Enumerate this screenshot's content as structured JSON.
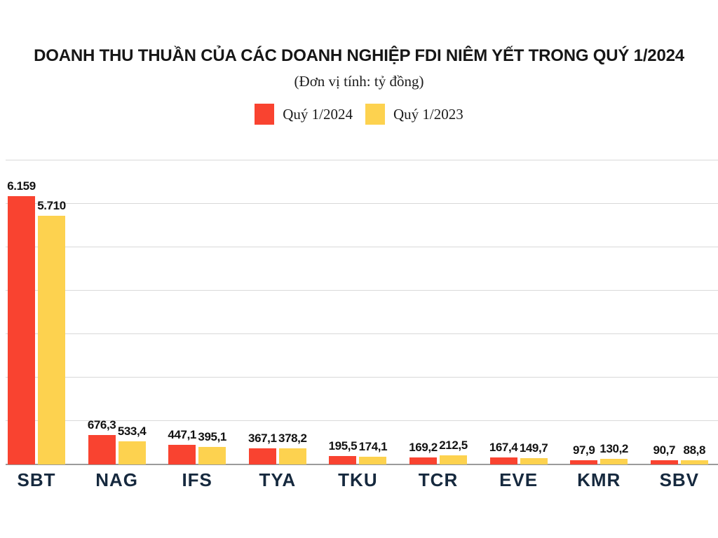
{
  "chart_data": {
    "type": "bar",
    "title": "DOANH THU THUẦN CỦA CÁC DOANH NGHIỆP FDI NIÊM YẾT TRONG QUÝ 1/2024",
    "subtitle": "(Đơn vị tính: tỷ đồng)",
    "unit": "tỷ đồng",
    "legend_position": "top",
    "grid": true,
    "grid_step": 1000,
    "ylim": [
      0,
      7000
    ],
    "categories": [
      "SBT",
      "NAG",
      "IFS",
      "TYA",
      "TKU",
      "TCR",
      "EVE",
      "KMR",
      "SBV"
    ],
    "series": [
      {
        "name": "Quý 1/2024",
        "color": "#f94330",
        "values": [
          6159,
          676.3,
          447.1,
          367.1,
          195.5,
          169.2,
          167.4,
          97.9,
          90.7
        ],
        "labels": [
          "6.159",
          "676,3",
          "447,1",
          "367,1",
          "195,5",
          "169,2",
          "167,4",
          "97,9",
          "90,7"
        ]
      },
      {
        "name": "Quý 1/2023",
        "color": "#fdd24f",
        "values": [
          5710,
          533.4,
          395.1,
          378.2,
          174.1,
          212.5,
          149.7,
          130.2,
          88.8
        ],
        "labels": [
          "5.710",
          "533,4",
          "395,1",
          "378,2",
          "174,1",
          "212,5",
          "149,7",
          "130,2",
          "88,8"
        ]
      }
    ],
    "colors": {
      "grid": "#d9d9d9",
      "baseline": "#9b9b9b",
      "category_label": "#16293e",
      "value_label": "#121212",
      "title": "#161616"
    }
  }
}
